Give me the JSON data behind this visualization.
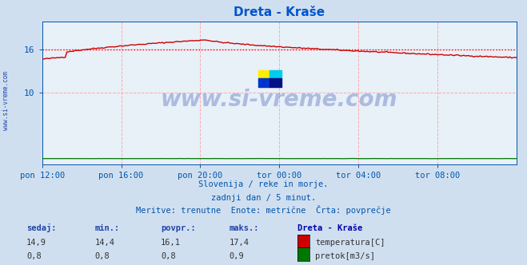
{
  "title": "Dreta - Kraše",
  "title_color": "#0055cc",
  "bg_color": "#d0dff0",
  "plot_bg_color": "#e8f0f8",
  "xlabel_color": "#0055aa",
  "y_label_color": "#0055aa",
  "temp_color": "#cc0000",
  "flow_color": "#007700",
  "avg_line_color": "#ff0000",
  "avg_line_value": 16.1,
  "y_min": 0,
  "y_max": 20,
  "y_ticks": [
    10,
    16
  ],
  "x_tick_labels": [
    "pon 12:00",
    "pon 16:00",
    "pon 20:00",
    "tor 00:00",
    "tor 04:00",
    "tor 08:00"
  ],
  "x_tick_positions": [
    0,
    48,
    96,
    144,
    192,
    240
  ],
  "total_points": 289,
  "subtitle1": "Slovenija / reke in morje.",
  "subtitle2": "zadnji dan / 5 minut.",
  "subtitle3": "Meritve: trenutne  Enote: metrične  Črta: povprečje",
  "subtitle_color": "#0055aa",
  "legend_title": "Dreta - Kraše",
  "legend_title_color": "#0000aa",
  "sedaj_label": "sedaj:",
  "min_label": "min.:",
  "povpr_label": "povpr.:",
  "maks_label": "maks.:",
  "temp_sedaj": "14,9",
  "temp_min": "14,4",
  "temp_povpr": "16,1",
  "temp_maks": "17,4",
  "flow_sedaj": "0,8",
  "flow_min": "0,8",
  "flow_povpr": "0,8",
  "flow_maks": "0,9",
  "watermark": "www.si-vreme.com",
  "watermark_color": "#2244aa",
  "grid_line_color": "#ffaaaa",
  "spine_color": "#0055aa",
  "left_label": "www.si-vreme.com"
}
